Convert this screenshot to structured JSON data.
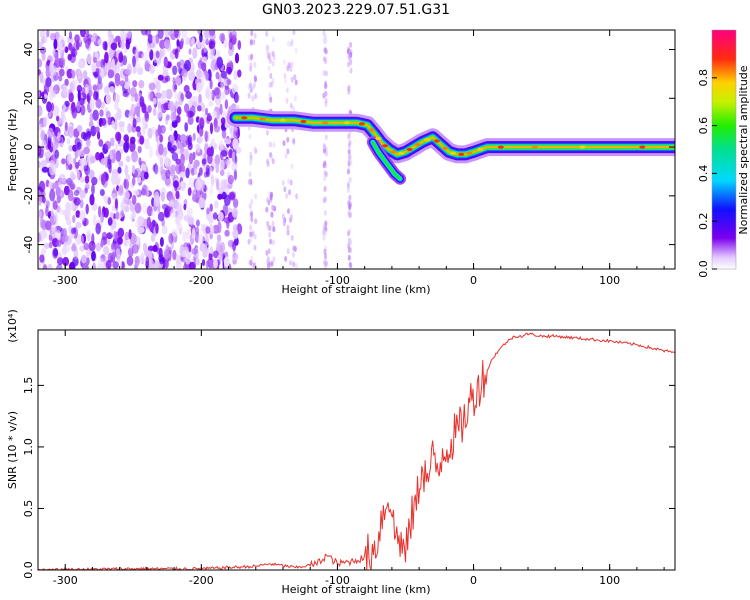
{
  "title": "GN03.2023.229.07.51.G31",
  "chart_data": [
    {
      "type": "heatmap",
      "xlabel": "Height of straight line (km)",
      "ylabel": "Frequency (Hz)",
      "xlim": [
        -320,
        148
      ],
      "ylim": [
        -50,
        48
      ],
      "xticks": [
        -300,
        -200,
        -100,
        0,
        100
      ],
      "yticks": [
        -40,
        -20,
        0,
        20,
        40
      ],
      "colorbar": {
        "label": "Normalized spectral amplitude",
        "range": [
          0.0,
          1.0
        ],
        "ticks": [
          0.0,
          0.2,
          0.4,
          0.6,
          0.8
        ],
        "colormap": "rainbow (white-violet-blue-cyan-green-yellow-red-magenta)"
      },
      "noise_region_x": [
        -320,
        -172
      ],
      "sparse_bands_x": [
        [
          -165,
          -160
        ],
        [
          -152,
          -146
        ],
        [
          -140,
          -130
        ],
        [
          -110,
          -108
        ],
        [
          -92,
          -90
        ]
      ],
      "ridge": {
        "x": [
          -175,
          -162,
          -148,
          -132,
          -118,
          -100,
          -86,
          -78,
          -72,
          -68,
          -62,
          -56,
          -50,
          -44,
          -38,
          -30,
          -24,
          -18,
          -12,
          -6,
          0,
          10,
          30,
          60,
          100,
          148
        ],
        "y": [
          12,
          12,
          11,
          11,
          10,
          10,
          10,
          9,
          5,
          2,
          -1,
          -3,
          -2,
          0,
          2,
          4,
          1,
          -2,
          -3,
          -3,
          -2,
          0,
          0,
          0,
          0,
          0
        ]
      },
      "branch": {
        "x": [
          -74,
          -70,
          -66,
          -62,
          -58,
          -54
        ],
        "y": [
          2,
          -2,
          -5,
          -8,
          -11,
          -13
        ]
      }
    },
    {
      "type": "line",
      "xlabel": "Height of straight line (km)",
      "ylabel": "SNR (10 * v/v)",
      "multiplier_label": "(x10⁴)",
      "xlim": [
        -320,
        148
      ],
      "ylim": [
        0,
        1.95
      ],
      "xticks": [
        -300,
        -200,
        -100,
        0,
        100
      ],
      "yticks": [
        0.0,
        0.5,
        1.0,
        1.5
      ],
      "color": "#e8312d",
      "series": [
        {
          "x": [
            -320,
            -250,
            -200,
            -160,
            -150,
            -130,
            -115,
            -108,
            -100,
            -90,
            -80,
            -72,
            -68,
            -62,
            -58,
            -54,
            -50,
            -46,
            -42,
            -38,
            -34,
            -30,
            -26,
            -22,
            -18,
            -14,
            -10,
            -6,
            -2,
            2,
            6,
            10,
            14,
            18,
            24,
            30,
            36,
            40,
            50,
            60,
            80,
            100,
            120,
            140,
            148
          ],
          "y": [
            0.0,
            0.01,
            0.01,
            0.03,
            0.05,
            0.02,
            0.05,
            0.12,
            0.05,
            0.07,
            0.1,
            0.18,
            0.4,
            0.62,
            0.3,
            0.25,
            0.12,
            0.4,
            0.55,
            0.85,
            0.72,
            0.9,
            0.8,
            1.0,
            1.0,
            1.1,
            1.15,
            1.25,
            1.38,
            1.45,
            1.55,
            1.62,
            1.72,
            1.78,
            1.85,
            1.9,
            1.9,
            1.92,
            1.9,
            1.9,
            1.88,
            1.86,
            1.83,
            1.78,
            1.77
          ]
        }
      ]
    }
  ]
}
